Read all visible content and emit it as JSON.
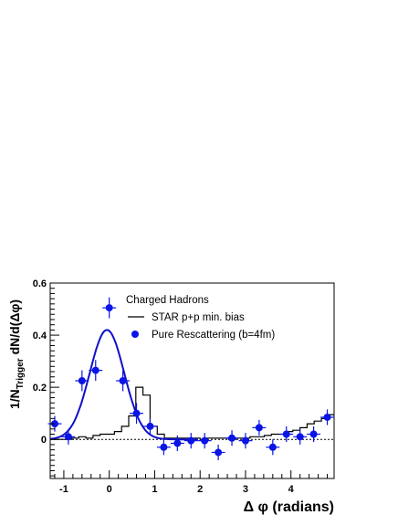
{
  "chart_data": {
    "type": "scatter",
    "title": "",
    "xlabel_main": "Δ φ",
    "xlabel_unit": " (radians)",
    "ylabel_prefix": "1/N",
    "ylabel_sub": "Trigger",
    "ylabel_suffix": " dN/d(Δφ)",
    "xlim": [
      -1.3,
      4.95
    ],
    "ylim": [
      -0.15,
      0.6
    ],
    "x_ticks": [
      {
        "value": -1,
        "label": "-1"
      },
      {
        "value": 0,
        "label": "0"
      },
      {
        "value": 1,
        "label": "1"
      },
      {
        "value": 2,
        "label": "2"
      },
      {
        "value": 3,
        "label": "3"
      },
      {
        "value": 4,
        "label": "4"
      }
    ],
    "y_ticks": [
      {
        "value": 0,
        "label": "0"
      },
      {
        "value": 0.2,
        "label": "0.2"
      },
      {
        "value": 0.4,
        "label": "0.4"
      },
      {
        "value": 0.6,
        "label": "0.6"
      }
    ],
    "legend": {
      "title": "Charged Hadrons",
      "entries": [
        {
          "label": "STAR p+p min. bias",
          "marker": "line"
        },
        {
          "label": "Pure Rescattering (b=4fm)",
          "marker": "circle"
        }
      ]
    },
    "colors": {
      "points": "#0a14e6",
      "fit": "#1010c8",
      "histogram": "#000000"
    },
    "series": [
      {
        "name": "STAR p+p min. bias",
        "kind": "histogram",
        "bin_width": 0.1571,
        "x_start": -1.3,
        "values": [
          0.0,
          0.0,
          0.0,
          0.005,
          0.01,
          0.005,
          0.015,
          0.02,
          0.02,
          0.03,
          0.05,
          0.09,
          0.2,
          0.17,
          0.05,
          0.02,
          0.005,
          0.005,
          0.005,
          0.005,
          0.005,
          0.0,
          0.005,
          0.005,
          0.005,
          0.0,
          0.005,
          0.005,
          0.01,
          0.01,
          0.015,
          0.02,
          0.02,
          0.03,
          0.035,
          0.045,
          0.06,
          0.07,
          0.08,
          0.095,
          0.11,
          0.13,
          0.15,
          0.155,
          0.12,
          0.09,
          0.06,
          0.04,
          0.03,
          0.03,
          0.025,
          0.015,
          0.015,
          0.01,
          0.02,
          0.015,
          0.005,
          0.005
        ]
      },
      {
        "name": "Pure Rescattering (b=4fm)",
        "kind": "points",
        "x": [
          -1.2,
          -0.9,
          -0.6,
          -0.3,
          0.0,
          0.3,
          0.6,
          0.9,
          1.2,
          1.5,
          1.8,
          2.1,
          2.4,
          2.7,
          3.0,
          3.3,
          3.6,
          3.9,
          4.2,
          4.5,
          4.8
        ],
        "y": [
          0.06,
          0.01,
          0.225,
          0.265,
          0.505,
          0.225,
          0.1,
          0.05,
          -0.03,
          -0.015,
          -0.005,
          -0.005,
          -0.05,
          0.005,
          -0.005,
          0.045,
          -0.03,
          0.02,
          0.01,
          0.02,
          0.085
        ],
        "yerr": [
          0.03,
          0.03,
          0.04,
          0.04,
          0.04,
          0.04,
          0.04,
          0.03,
          0.03,
          0.03,
          0.03,
          0.03,
          0.03,
          0.03,
          0.03,
          0.03,
          0.03,
          0.03,
          0.03,
          0.03,
          0.03
        ],
        "xerr": 0.15
      },
      {
        "name": "Gaussian fit",
        "kind": "curve",
        "amplitude": 0.42,
        "mean": -0.05,
        "sigma": 0.38
      }
    ]
  }
}
